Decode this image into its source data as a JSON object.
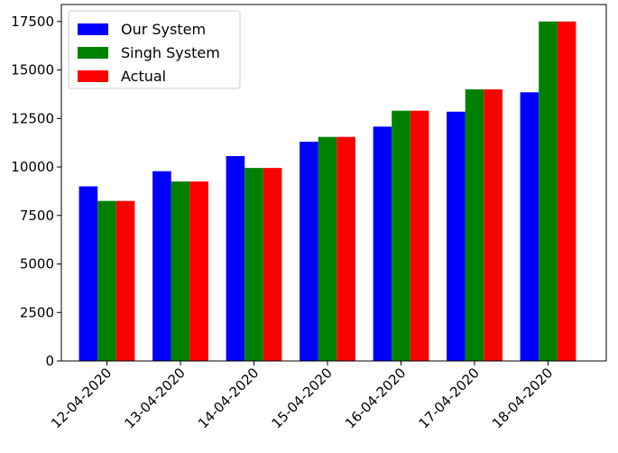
{
  "chart_data": {
    "type": "bar",
    "title": "",
    "xlabel": "",
    "ylabel": "",
    "categories": [
      "12-04-2020",
      "13-04-2020",
      "14-04-2020",
      "15-04-2020",
      "16-04-2020",
      "17-04-2020",
      "18-04-2020"
    ],
    "series": [
      {
        "name": "Our System",
        "color": "#0000ff",
        "values": [
          9000,
          9780,
          10560,
          11300,
          12080,
          12850,
          13850
        ]
      },
      {
        "name": "Singh System",
        "color": "#008000",
        "values": [
          8250,
          9250,
          9950,
          11550,
          12900,
          14000,
          17500
        ]
      },
      {
        "name": "Actual",
        "color": "#ff0000",
        "values": [
          8250,
          9250,
          9950,
          11550,
          12900,
          14000,
          17500
        ]
      }
    ],
    "yticks": [
      0,
      2500,
      5000,
      7500,
      10000,
      12500,
      15000,
      17500
    ],
    "ylim": [
      0,
      18375
    ],
    "grid": false,
    "legend_position": "top-left"
  }
}
